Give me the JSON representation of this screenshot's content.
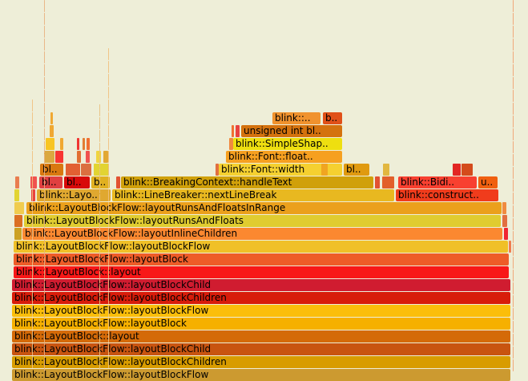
{
  "background": "#eeeed8",
  "frames": [
    {
      "label": "blink::..",
      "color": "#f0922e"
    },
    {
      "label": "b..",
      "color": "#e05018"
    },
    {
      "label": "unsigned int bl..",
      "color": "#d4720e"
    },
    {
      "label": "blink::SimpleShap..",
      "color": "#eedf10"
    },
    {
      "label": "blink::Font::float..",
      "color": "#f6a020"
    },
    {
      "label": "blink::Font::width",
      "color": "#f5d030"
    },
    {
      "label": "bl..",
      "color": "#e09a10"
    },
    {
      "label": "bl..",
      "color": "#d87810"
    },
    {
      "label": "bl..",
      "color": "#e04040"
    },
    {
      "label": "bl..",
      "color": "#d80a0a"
    },
    {
      "label": "b..",
      "color": "#e0b020"
    },
    {
      "label": "blink::BreakingContext::handleText",
      "color": "#d0a00a"
    },
    {
      "label": "blink::Bidi..",
      "color": "#f84030"
    },
    {
      "label": "u..",
      "color": "#f06010"
    },
    {
      "label": "blink::Layo..",
      "color": "#e0a830"
    },
    {
      "label": "blink::LineBreaker::nextLineBreak",
      "color": "#e8b820"
    },
    {
      "label": "blink::construct..",
      "color": "#f03c1c"
    },
    {
      "label": "blink::LayoutBlockFlow::layoutRunsAndFloatsInRange",
      "color": "#eba01c"
    },
    {
      "label": "blink::LayoutBlockFlow::layoutRunsAndFloats",
      "color": "#e0cc30"
    },
    {
      "label": "blink::LayoutBlockFlow::layoutInlineChildren",
      "color": "#fb8830"
    },
    {
      "label": "blink::LayoutBlockFlow::layoutBlockFlow",
      "color": "#f0c028"
    },
    {
      "label": "blink::LayoutBlockFlow::layoutBlock",
      "color": "#ee5c28"
    },
    {
      "label": "blink::LayoutBlock::layout",
      "color": "#f81818"
    },
    {
      "label": "blink::LayoutBlockFlow::layoutBlockChild",
      "color": "#d01c30"
    },
    {
      "label": "blink::LayoutBlockFlow::layoutBlockChildren",
      "color": "#d81c0a"
    },
    {
      "label": "blink::LayoutBlockFlow::layoutBlockFlow",
      "color": "#fbbe0a"
    },
    {
      "label": "blink::LayoutBlockFlow::layoutBlock",
      "color": "#f6b000"
    },
    {
      "label": "blink::LayoutBlock::layout",
      "color": "#d46a08"
    },
    {
      "label": "blink::LayoutBlockFlow::layoutBlockChild",
      "color": "#c85410"
    },
    {
      "label": "blink::LayoutBlockFlow::layoutBlockChildren",
      "color": "#d89c00"
    },
    {
      "label": "blink::LayoutBlockFlow::layoutBlockFlow",
      "color": "#cc9a30"
    }
  ]
}
